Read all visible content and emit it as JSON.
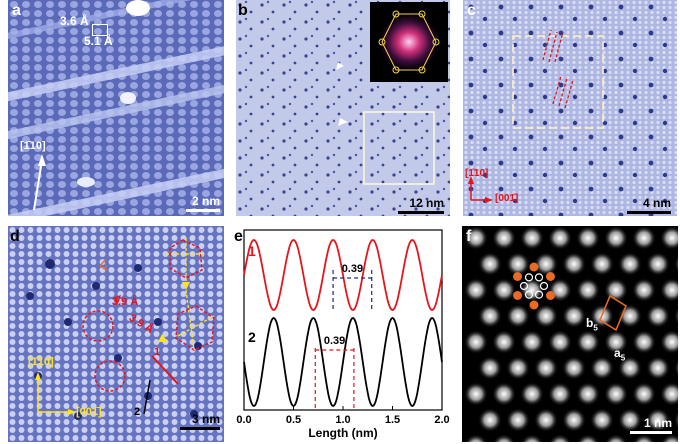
{
  "figure": {
    "panels": {
      "a": {
        "label": "a",
        "lattice_a": "3.6 Å",
        "lattice_b": "5.1 Å",
        "direction": "[1̄10]",
        "scale_bar": "2 nm"
      },
      "b": {
        "label": "b",
        "scale_bar": "12 nm",
        "inset": "FFT"
      },
      "c": {
        "label": "c",
        "dir_vertical": "[1̄10]",
        "dir_horizontal": "[001̄]",
        "scale_bar": "4 nm"
      },
      "d": {
        "label": "d",
        "spacing_1": "3.9 Å",
        "spacing_2": "3.9 Å",
        "line_1": "1",
        "line_2": "2",
        "dir_vertical": "[1̄10]",
        "dir_horizontal": "[001̄]",
        "scale_bar": "3 nm"
      },
      "e": {
        "label": "e",
        "curve_1_label": "1",
        "curve_2_label": "2",
        "spacing_1": "0.39",
        "spacing_2": "0.39",
        "xlabel": "Length (nm)",
        "xticks": [
          "0.0",
          "0.5",
          "1.0",
          "1.5",
          "2.0"
        ]
      },
      "f": {
        "label": "f",
        "vec_b": "b",
        "vec_b_sub": "5",
        "vec_a": "a",
        "vec_a_sub": "5",
        "scale_bar": "1 nm"
      }
    },
    "colors": {
      "stm_blue": "#6a77c0",
      "red": "#e8141c",
      "yellow": "#ffe21f",
      "orange": "#e86a24",
      "navy": "#1a2a7a"
    }
  },
  "chart_data": {
    "type": "line",
    "xlabel": "Length (nm)",
    "xlim": [
      0.0,
      2.0
    ],
    "xticks": [
      0.0,
      0.5,
      1.0,
      1.5,
      2.0
    ],
    "series": [
      {
        "name": "1",
        "color": "#e8141c",
        "peaks_x": [
          0.1,
          0.5,
          0.9,
          1.3,
          1.7
        ],
        "period_nm": 0.39,
        "marked_from": 0.9,
        "marked_to": 1.29
      },
      {
        "name": "2",
        "color": "#000000",
        "peaks_x": [
          0.3,
          0.7,
          1.1,
          1.5,
          1.9
        ],
        "period_nm": 0.39,
        "marked_from": 0.72,
        "marked_to": 1.11
      }
    ]
  }
}
